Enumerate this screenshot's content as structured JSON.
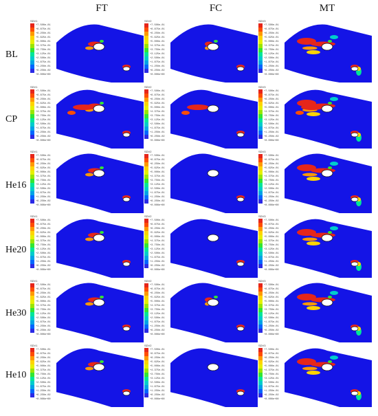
{
  "columns": [
    "FT",
    "FC",
    "MT"
  ],
  "rows": [
    "BL",
    "CP",
    "He16",
    "He20",
    "He30",
    "He10"
  ],
  "legend_titles": [
    "SDV1",
    "SDV2",
    "SDV3"
  ],
  "legend_values": [
    "+7.500e-01",
    "+6.875e-01",
    "+6.250e-01",
    "+5.625e-01",
    "+5.000e-01",
    "+4.375e-01",
    "+3.750e-01",
    "+3.125e-01",
    "+2.500e-01",
    "+1.875e-01",
    "+1.250e-01",
    "+6.250e-02",
    "+0.000e+00"
  ],
  "colors": {
    "plate": "#1414e6",
    "colormap": [
      "#e6261a",
      "#ff4d00",
      "#ff9900",
      "#ffd400",
      "#e6f000",
      "#99e600",
      "#33e633",
      "#00e699",
      "#00cccc",
      "#00a3e6",
      "#0066ff",
      "#2a2ae6",
      "#0000c8"
    ]
  }
}
